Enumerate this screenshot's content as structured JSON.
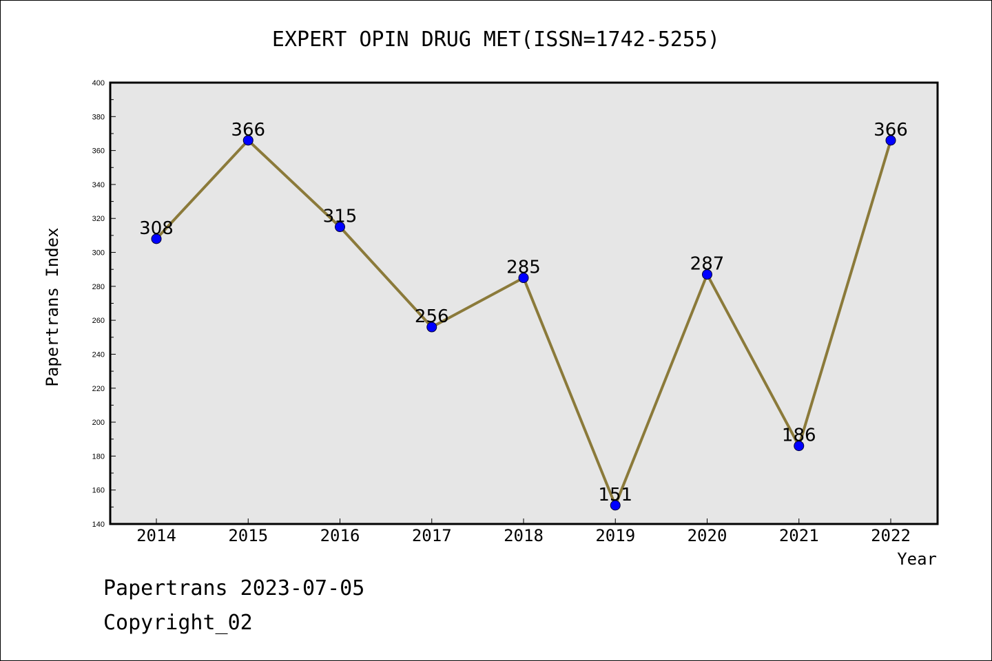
{
  "chart_data": {
    "type": "line",
    "title": "EXPERT OPIN DRUG MET(ISSN=1742-5255)",
    "xlabel": "Year",
    "ylabel": "Papertrans Index",
    "categories": [
      "2014",
      "2015",
      "2016",
      "2017",
      "2018",
      "2019",
      "2020",
      "2021",
      "2022"
    ],
    "values": [
      308,
      366,
      315,
      256,
      285,
      151,
      287,
      186,
      366
    ],
    "ylim": [
      140,
      400
    ],
    "yticks": [
      140,
      160,
      180,
      200,
      220,
      240,
      260,
      280,
      300,
      320,
      340,
      360,
      380,
      400
    ],
    "grid": false,
    "line_color": "#8b7a3a",
    "marker_color": "#0000ff",
    "plot_background": "#e6e6e6"
  },
  "footer": {
    "line1": "Papertrans 2023-07-05",
    "line2": "Copyright_02"
  }
}
